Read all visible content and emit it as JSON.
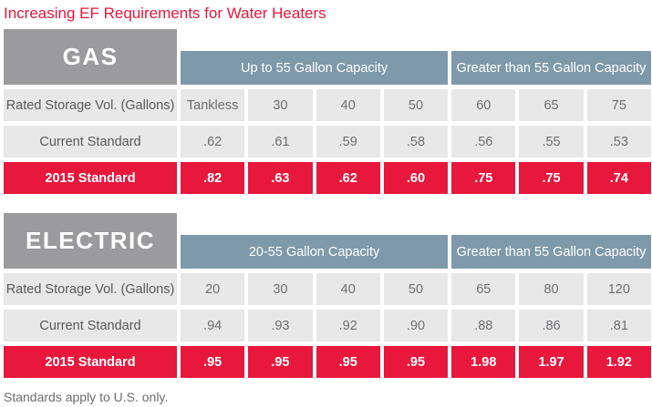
{
  "title": "Increasing EF Requirements for Water Heaters",
  "footer": "Standards apply to U.S. only.",
  "colors": {
    "red": "#E8173C",
    "slate": "#7E99A9",
    "gray": "#9B9B9D",
    "cell": "#E8E8E8",
    "label_text": "#58595B",
    "value_text": "#6D6E71"
  },
  "tables": [
    {
      "name": "GAS",
      "groups": [
        {
          "label": "Up to 55 Gallon Capacity",
          "span": 4
        },
        {
          "label": "Greater than 55 Gallon Capacity",
          "span": 3
        }
      ],
      "rows": [
        {
          "label": "Rated Storage Vol. (Gallons)",
          "values": [
            "Tankless",
            "30",
            "40",
            "50",
            "60",
            "65",
            "75"
          ]
        },
        {
          "label": "Current Standard",
          "values": [
            ".62",
            ".61",
            ".59",
            ".58",
            ".56",
            ".55",
            ".53"
          ]
        },
        {
          "label": "2015 Standard",
          "values": [
            ".82",
            ".63",
            ".62",
            ".60",
            ".75",
            ".75",
            ".74"
          ]
        }
      ]
    },
    {
      "name": "ELECTRIC",
      "groups": [
        {
          "label": "20-55 Gallon Capacity",
          "span": 4
        },
        {
          "label": "Greater than 55 Gallon Capacity",
          "span": 3
        }
      ],
      "rows": [
        {
          "label": "Rated Storage Vol. (Gallons)",
          "values": [
            "20",
            "30",
            "40",
            "50",
            "65",
            "80",
            "120"
          ]
        },
        {
          "label": "Current Standard",
          "values": [
            ".94",
            ".93",
            ".92",
            ".90",
            ".88",
            ".86",
            ".81"
          ]
        },
        {
          "label": "2015 Standard",
          "values": [
            ".95",
            ".95",
            ".95",
            ".95",
            "1.98",
            "1.97",
            "1.92"
          ]
        }
      ]
    }
  ],
  "chart_data": [
    {
      "type": "table",
      "title": "GAS",
      "column_groups": [
        {
          "label": "Up to 55 Gallon Capacity",
          "columns": [
            "Tankless",
            "30",
            "40",
            "50"
          ]
        },
        {
          "label": "Greater than 55 Gallon Capacity",
          "columns": [
            "60",
            "65",
            "75"
          ]
        }
      ],
      "categories": [
        "Tankless",
        "30",
        "40",
        "50",
        "60",
        "65",
        "75"
      ],
      "row_header": "Rated Storage Vol. (Gallons)",
      "series": [
        {
          "name": "Current Standard",
          "values": [
            0.62,
            0.61,
            0.59,
            0.58,
            0.56,
            0.55,
            0.53
          ]
        },
        {
          "name": "2015 Standard",
          "values": [
            0.82,
            0.63,
            0.62,
            0.6,
            0.75,
            0.75,
            0.74
          ]
        }
      ]
    },
    {
      "type": "table",
      "title": "ELECTRIC",
      "column_groups": [
        {
          "label": "20-55 Gallon Capacity",
          "columns": [
            "20",
            "30",
            "40",
            "50"
          ]
        },
        {
          "label": "Greater than 55 Gallon Capacity",
          "columns": [
            "65",
            "80",
            "120"
          ]
        }
      ],
      "categories": [
        "20",
        "30",
        "40",
        "50",
        "65",
        "80",
        "120"
      ],
      "row_header": "Rated Storage Vol. (Gallons)",
      "series": [
        {
          "name": "Current Standard",
          "values": [
            0.94,
            0.93,
            0.92,
            0.9,
            0.88,
            0.86,
            0.81
          ]
        },
        {
          "name": "2015 Standard",
          "values": [
            0.95,
            0.95,
            0.95,
            0.95,
            1.98,
            1.97,
            1.92
          ]
        }
      ]
    }
  ]
}
